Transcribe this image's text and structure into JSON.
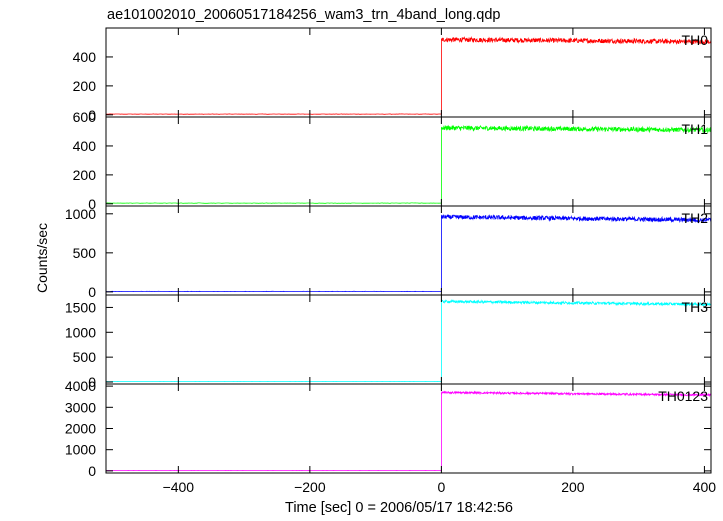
{
  "chart_data": {
    "type": "line",
    "title": "ae101002010_20060517184256_wam3_trn_4band_long.qdp",
    "xlabel": "Time [sec] 0 = 2006/05/17 18:42:56",
    "ylabel": "Counts/sec",
    "xlim": [
      -510,
      410
    ],
    "xticks": [
      -400,
      -200,
      0,
      200,
      400
    ],
    "xtick_labels": [
      "−400",
      "−200",
      "0",
      "200",
      "400"
    ],
    "grid": false,
    "panels": [
      {
        "name": "TH0",
        "color": "#ff0000",
        "ylim": [
          -15,
          600
        ],
        "yticks": [
          0,
          200,
          400
        ],
        "ytick_labels": [
          "0",
          "200",
          "400"
        ],
        "pre_level": 5,
        "post_start": 520,
        "post_end": 505,
        "noise": 16
      },
      {
        "name": "TH1",
        "color": "#00ff00",
        "ylim": [
          -15,
          600
        ],
        "yticks": [
          0,
          200,
          400,
          600
        ],
        "ytick_labels": [
          "0",
          "200",
          "400",
          "600"
        ],
        "pre_level": 5,
        "post_start": 525,
        "post_end": 510,
        "noise": 16
      },
      {
        "name": "TH2",
        "color": "#0000ff",
        "ylim": [
          -40,
          1100
        ],
        "yticks": [
          0,
          500,
          1000
        ],
        "ytick_labels": [
          "0",
          "500",
          "1000"
        ],
        "pre_level": 5,
        "post_start": 960,
        "post_end": 920,
        "noise": 28
      },
      {
        "name": "TH3",
        "color": "#00ffff",
        "ylim": [
          -40,
          1750
        ],
        "yticks": [
          0,
          500,
          1000,
          1500
        ],
        "ytick_labels": [
          "0",
          "500",
          "1000",
          "1500"
        ],
        "pre_level": 10,
        "post_start": 1620,
        "post_end": 1560,
        "noise": 26
      },
      {
        "name": "TH0123",
        "color": "#ff00ff",
        "ylim": [
          -100,
          4100
        ],
        "yticks": [
          0,
          1000,
          2000,
          3000,
          4000
        ],
        "ytick_labels": [
          "0",
          "1000",
          "2000",
          "3000",
          "4000"
        ],
        "pre_level": 20,
        "post_start": 3700,
        "post_end": 3580,
        "noise": 45
      }
    ]
  }
}
